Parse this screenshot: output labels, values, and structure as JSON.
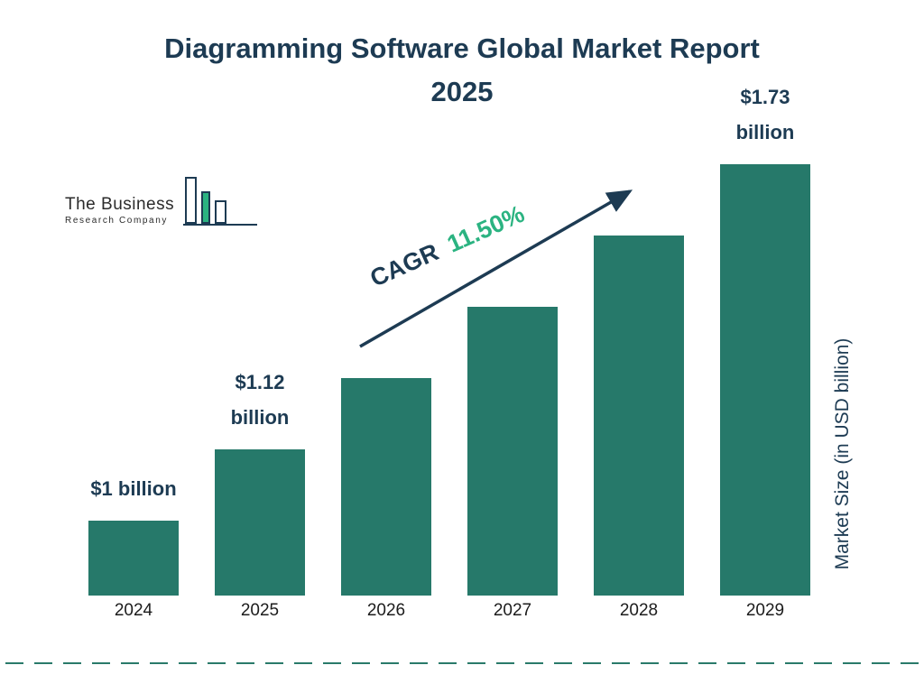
{
  "title": {
    "line1": "Diagramming Software Global Market Report",
    "line2": "2025"
  },
  "logo": {
    "line1": "The Business",
    "line2": "Research Company"
  },
  "cagr": {
    "label": "CAGR",
    "value": "11.50%"
  },
  "y_axis_label": "Market Size (in USD billion)",
  "colors": {
    "bar": "#26796a",
    "title": "#1d3b53",
    "cagr_green": "#2bb381",
    "dashed_line": "#2a7a6a"
  },
  "chart_data": {
    "type": "bar",
    "title": "Diagramming Software Global Market Report 2025",
    "categories": [
      "2024",
      "2025",
      "2026",
      "2027",
      "2028",
      "2029"
    ],
    "values": [
      1.0,
      1.12,
      1.25,
      1.39,
      1.55,
      1.73
    ],
    "bar_labels": [
      [
        "$1 billion"
      ],
      [
        "$1.12",
        "billion"
      ],
      [],
      [],
      [],
      [
        "$1.73",
        "billion"
      ]
    ],
    "xlabel": "",
    "ylabel": "Market Size (in USD billion)",
    "unit": "USD billion",
    "cagr": "11.50%",
    "legend": "none",
    "grid": false,
    "bar_color": "#26796a"
  }
}
